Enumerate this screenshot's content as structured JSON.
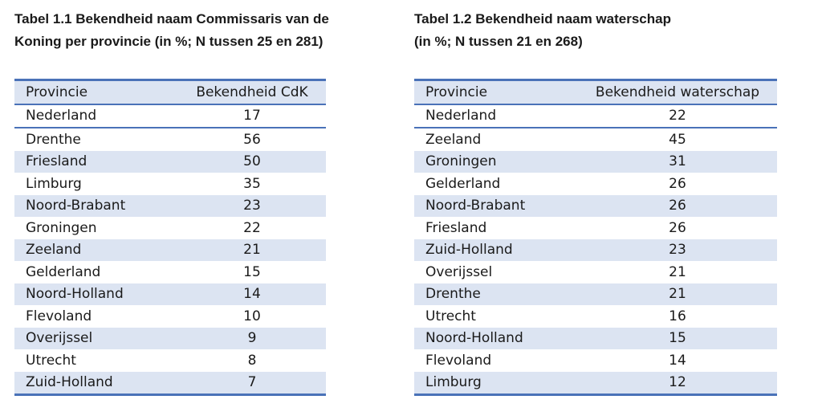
{
  "table1": {
    "caption_line1": "Tabel 1.1 Bekendheid naam Commissaris van de",
    "caption_line2": "Koning per provincie (in %; N tussen 25 en 281)",
    "header_province": "Provincie",
    "header_value": "Bekendheid CdK",
    "national": {
      "province": "Nederland",
      "value": "17"
    },
    "rows": [
      {
        "province": "Drenthe",
        "value": "56"
      },
      {
        "province": "Friesland",
        "value": "50"
      },
      {
        "province": "Limburg",
        "value": "35"
      },
      {
        "province": "Noord-Brabant",
        "value": "23"
      },
      {
        "province": "Groningen",
        "value": "22"
      },
      {
        "province": "Zeeland",
        "value": "21"
      },
      {
        "province": "Gelderland",
        "value": "15"
      },
      {
        "province": "Noord-Holland",
        "value": "14"
      },
      {
        "province": "Flevoland",
        "value": "10"
      },
      {
        "province": "Overijssel",
        "value": "9"
      },
      {
        "province": "Utrecht",
        "value": "8"
      },
      {
        "province": "Zuid-Holland",
        "value": "7"
      }
    ]
  },
  "table2": {
    "caption_line1": "Tabel 1.2 Bekendheid naam waterschap",
    "caption_line2": "(in %; N tussen 21 en 268)",
    "header_province": "Provincie",
    "header_value": "Bekendheid waterschap",
    "national": {
      "province": "Nederland",
      "value": "22"
    },
    "rows": [
      {
        "province": "Zeeland",
        "value": "45"
      },
      {
        "province": "Groningen",
        "value": "31"
      },
      {
        "province": "Gelderland",
        "value": "26"
      },
      {
        "province": "Noord-Brabant",
        "value": "26"
      },
      {
        "province": "Friesland",
        "value": "26"
      },
      {
        "province": "Zuid-Holland",
        "value": "23"
      },
      {
        "province": "Overijssel",
        "value": "21"
      },
      {
        "province": "Drenthe",
        "value": "21"
      },
      {
        "province": "Utrecht",
        "value": "16"
      },
      {
        "province": "Noord-Holland",
        "value": "15"
      },
      {
        "province": "Flevoland",
        "value": "14"
      },
      {
        "province": "Limburg",
        "value": "12"
      }
    ]
  },
  "colors": {
    "rule": "#4a72b8",
    "shade": "#dce4f2",
    "text": "#1a1a1a"
  }
}
